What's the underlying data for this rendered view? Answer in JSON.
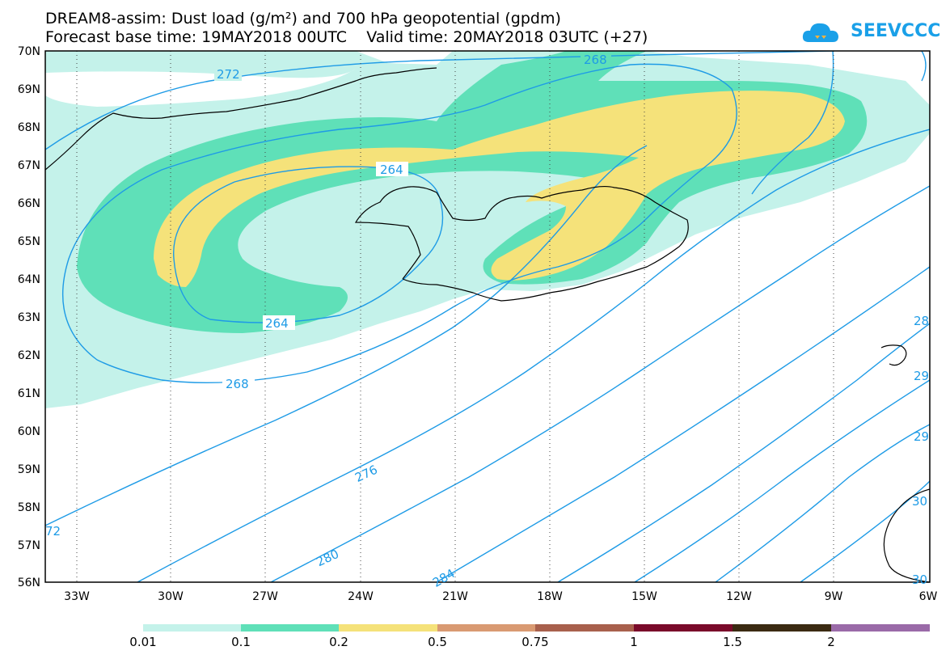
{
  "title_line1": "DREAM8-assim: Dust load (g/m²) and 700 hPa geopotential (gpdm)",
  "title_line2": "Forecast base time: 19MAY2018 00UTC    Valid time: 20MAY2018 03UTC (+27)",
  "logo_text": "SEEVCCC",
  "lat_labels": [
    "70N",
    "69N",
    "68N",
    "67N",
    "66N",
    "65N",
    "64N",
    "63N",
    "62N",
    "61N",
    "60N",
    "59N",
    "58N",
    "57N",
    "56N"
  ],
  "lon_labels": [
    "33W",
    "30W",
    "27W",
    "24W",
    "21W",
    "18W",
    "15W",
    "12W",
    "9W",
    "6W"
  ],
  "contour_labels": [
    "272",
    "268",
    "264",
    "264",
    "268",
    "276",
    "280",
    "284",
    "72",
    "28",
    "29",
    "29",
    "30",
    "30"
  ],
  "colorbar": {
    "labels": [
      "0.01",
      "0.1",
      "0.2",
      "0.5",
      "0.75",
      "1",
      "1.5",
      "2"
    ],
    "colors": [
      "#c4f2ea",
      "#5fe0b8",
      "#f5e27a",
      "#d99a72",
      "#a8604c",
      "#7a0a2a",
      "#3b2a12",
      "#9a6aa8"
    ]
  },
  "colors": {
    "contour": "#1e9be6",
    "coast": "#000000"
  }
}
